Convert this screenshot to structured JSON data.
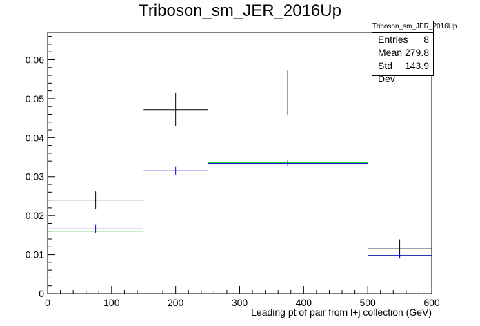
{
  "chart_data": {
    "type": "histogram",
    "title": "Triboson_sm_JER_2016Up",
    "xlabel": "Leading pt of pair from l+j collection (GeV)",
    "ylabel": "",
    "xlim": [
      0,
      600
    ],
    "ylim": [
      0,
      0.067
    ],
    "x_ticks": [
      "0",
      "100",
      "200",
      "300",
      "400",
      "500",
      "600"
    ],
    "y_ticks": [
      "0",
      "0.01",
      "0.02",
      "0.03",
      "0.04",
      "0.05",
      "0.06"
    ],
    "bin_edges": [
      0,
      150,
      250,
      500,
      600
    ],
    "series": [
      {
        "color": "#000000",
        "values": [
          0.024,
          0.0472,
          0.0515,
          0.0115
        ],
        "errors": [
          0.0022,
          0.0043,
          0.0058,
          0.0024
        ]
      },
      {
        "color": "#00cc00",
        "values": [
          0.016,
          0.032,
          0.0336,
          0.0098
        ],
        "errors": [
          0,
          0,
          0,
          0
        ]
      },
      {
        "color": "#0000cc",
        "values": [
          0.0166,
          0.0315,
          0.0334,
          0.0098
        ],
        "errors": [
          0.001,
          0.001,
          0.0008,
          0.0008
        ]
      }
    ]
  },
  "stats_box": {
    "title": "Triboson_sm_JER_2016Up",
    "entries_label": "Entries",
    "entries_value": "8",
    "mean_label": "Mean",
    "mean_value": "279.8",
    "stddev_label": "Std Dev",
    "stddev_value": "143.9"
  }
}
